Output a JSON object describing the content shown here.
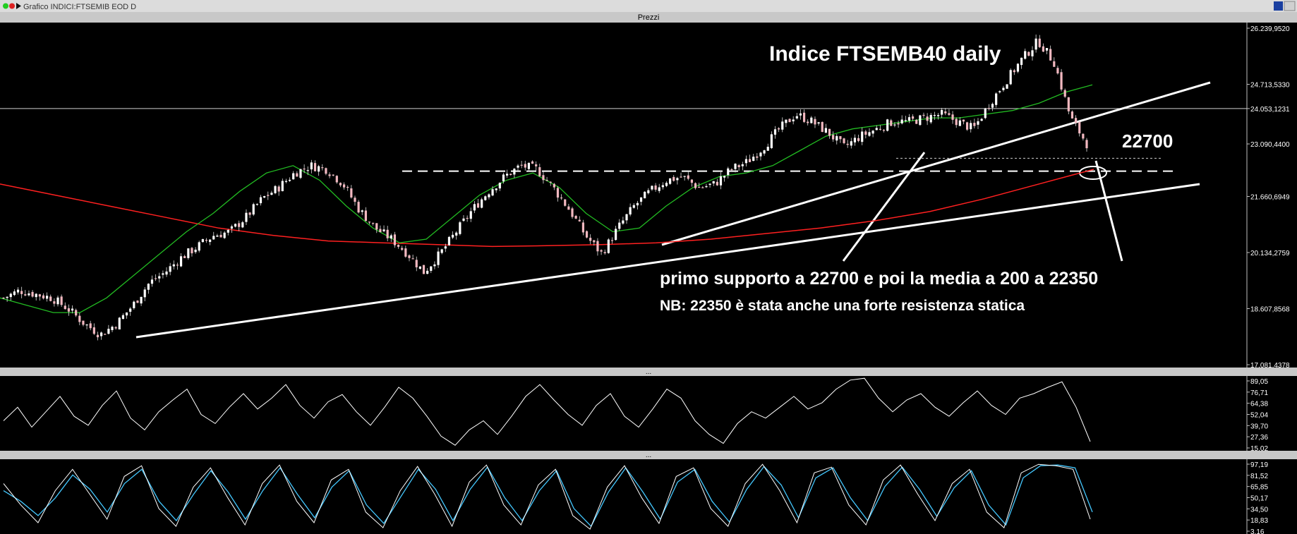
{
  "window": {
    "title": "Grafico INDICI:FTSEMIB EOD D",
    "panel_title": "Prezzi",
    "separator_label": "...",
    "colors": {
      "frame": "#c0c0c0",
      "titlebar": "#dcdcdc",
      "background": "#000000",
      "axis_text": "#ffffff"
    }
  },
  "chart_data": [
    {
      "type": "candlestick",
      "title": "Indice FTSEMB40 daily",
      "ylim": [
        17081.4378,
        26239.952
      ],
      "y_tick_labels": [
        "26.239,9520",
        "24.713,5330",
        "24.053,1231",
        "23.090,4400",
        "21.660,6949",
        "20.134,2759",
        "18.607,8568",
        "17.081,4378"
      ],
      "y_ticks": [
        26239.952,
        24713.533,
        24053.1231,
        23090.44,
        21660.6949,
        20134.2759,
        18607.8568,
        17081.4378
      ],
      "close_levels": [
        18900,
        19100,
        19000,
        18900,
        18600,
        18200,
        17900,
        18200,
        18700,
        19300,
        19600,
        20000,
        20300,
        20600,
        20700,
        21100,
        21600,
        21900,
        22300,
        22500,
        22400,
        22000,
        21300,
        20800,
        20500,
        20100,
        19600,
        20100,
        20700,
        21300,
        21800,
        22200,
        22500,
        22400,
        21900,
        21300,
        20600,
        20100,
        20800,
        21400,
        21800,
        22100,
        22200,
        21900,
        22000,
        22400,
        22600,
        23000,
        23500,
        23900,
        23700,
        23400,
        23000,
        23300,
        23500,
        23700,
        23700,
        23800,
        23900,
        23700,
        23500,
        24200,
        24800,
        25400,
        25900,
        25300,
        23800,
        23100
      ],
      "series": [
        {
          "name": "",
          "role": "media 200",
          "color": "#ff2020",
          "values": [
            22000,
            21700,
            21400,
            21100,
            20800,
            20600,
            20450,
            20400,
            20350,
            20300,
            20320,
            20350,
            20400,
            20500,
            20650,
            20800,
            21000,
            21250,
            21600,
            22000,
            22400
          ]
        },
        {
          "name": "",
          "role": "media breve",
          "color": "#22bb22",
          "values": [
            18900,
            18700,
            18500,
            18500,
            18900,
            19500,
            20100,
            20700,
            21200,
            21800,
            22300,
            22500,
            22100,
            21400,
            20800,
            20400,
            20500,
            21100,
            21700,
            22100,
            22300,
            21900,
            21200,
            20700,
            20800,
            21400,
            21900,
            22200,
            22300,
            22500,
            22900,
            23300,
            23500,
            23600,
            23700,
            23800,
            23800,
            23900,
            24000,
            24200,
            24500,
            24700
          ]
        }
      ],
      "horizontal_levels": [
        {
          "value": 24053.1231,
          "style": "solid"
        },
        {
          "value": 22700,
          "label": "22700",
          "style": "dashed"
        },
        {
          "value": 22350,
          "style": "dashed"
        }
      ],
      "annotations": [
        "primo supporto a 22700 e poi la media a 200 a 22350",
        "NB: 22350 è stata anche una forte resistenza statica"
      ]
    },
    {
      "type": "line",
      "title": "",
      "ylim": [
        15.02,
        89.05
      ],
      "y_tick_labels": [
        "89,05",
        "76,71",
        "64,38",
        "52,04",
        "39,70",
        "27,36",
        "15,02"
      ],
      "y_ticks": [
        89.05,
        76.71,
        64.38,
        52.04,
        39.7,
        27.36,
        15.02
      ],
      "series": [
        {
          "name": "",
          "color": "#ffffff",
          "values": [
            45,
            60,
            38,
            55,
            72,
            50,
            40,
            62,
            78,
            48,
            35,
            55,
            68,
            80,
            52,
            42,
            60,
            75,
            58,
            70,
            85,
            62,
            48,
            66,
            74,
            55,
            40,
            60,
            82,
            70,
            50,
            28,
            18,
            35,
            45,
            30,
            50,
            72,
            85,
            68,
            52,
            40,
            62,
            75,
            50,
            38,
            58,
            80,
            70,
            45,
            30,
            20,
            42,
            55,
            48,
            60,
            72,
            58,
            65,
            80,
            90,
            92,
            70,
            55,
            68,
            75,
            60,
            50,
            65,
            78,
            62,
            52,
            70,
            75,
            82,
            88,
            60,
            22
          ]
        }
      ]
    },
    {
      "type": "line",
      "title": "",
      "ylim": [
        3.16,
        97.19
      ],
      "y_tick_labels": [
        "97,19",
        "81,52",
        "65,85",
        "50,17",
        "34,50",
        "18,83",
        "3,16"
      ],
      "y_ticks": [
        97.19,
        81.52,
        65.85,
        50.17,
        34.5,
        18.83,
        3.16
      ],
      "series": [
        {
          "name": "",
          "color": "#ffffff",
          "values": [
            70,
            40,
            15,
            60,
            90,
            55,
            20,
            80,
            95,
            35,
            10,
            65,
            92,
            50,
            12,
            70,
            96,
            45,
            15,
            75,
            90,
            30,
            8,
            60,
            94,
            55,
            10,
            72,
            96,
            40,
            12,
            68,
            90,
            25,
            6,
            65,
            95,
            50,
            14,
            80,
            92,
            35,
            10,
            70,
            97,
            60,
            15,
            85,
            93,
            40,
            12,
            75,
            96,
            55,
            18,
            70,
            90,
            30,
            8,
            85,
            97,
            95,
            90,
            20
          ]
        },
        {
          "name": "",
          "color": "#44c8ff",
          "values": [
            60,
            45,
            25,
            50,
            82,
            62,
            30,
            70,
            90,
            45,
            18,
            55,
            88,
            58,
            20,
            60,
            92,
            55,
            22,
            65,
            88,
            40,
            14,
            52,
            90,
            62,
            18,
            62,
            93,
            50,
            18,
            60,
            88,
            35,
            10,
            58,
            92,
            58,
            20,
            72,
            90,
            45,
            16,
            62,
            94,
            68,
            22,
            78,
            92,
            50,
            18,
            66,
            93,
            62,
            24,
            64,
            88,
            40,
            12,
            78,
            95,
            96,
            92,
            30
          ]
        }
      ]
    }
  ]
}
